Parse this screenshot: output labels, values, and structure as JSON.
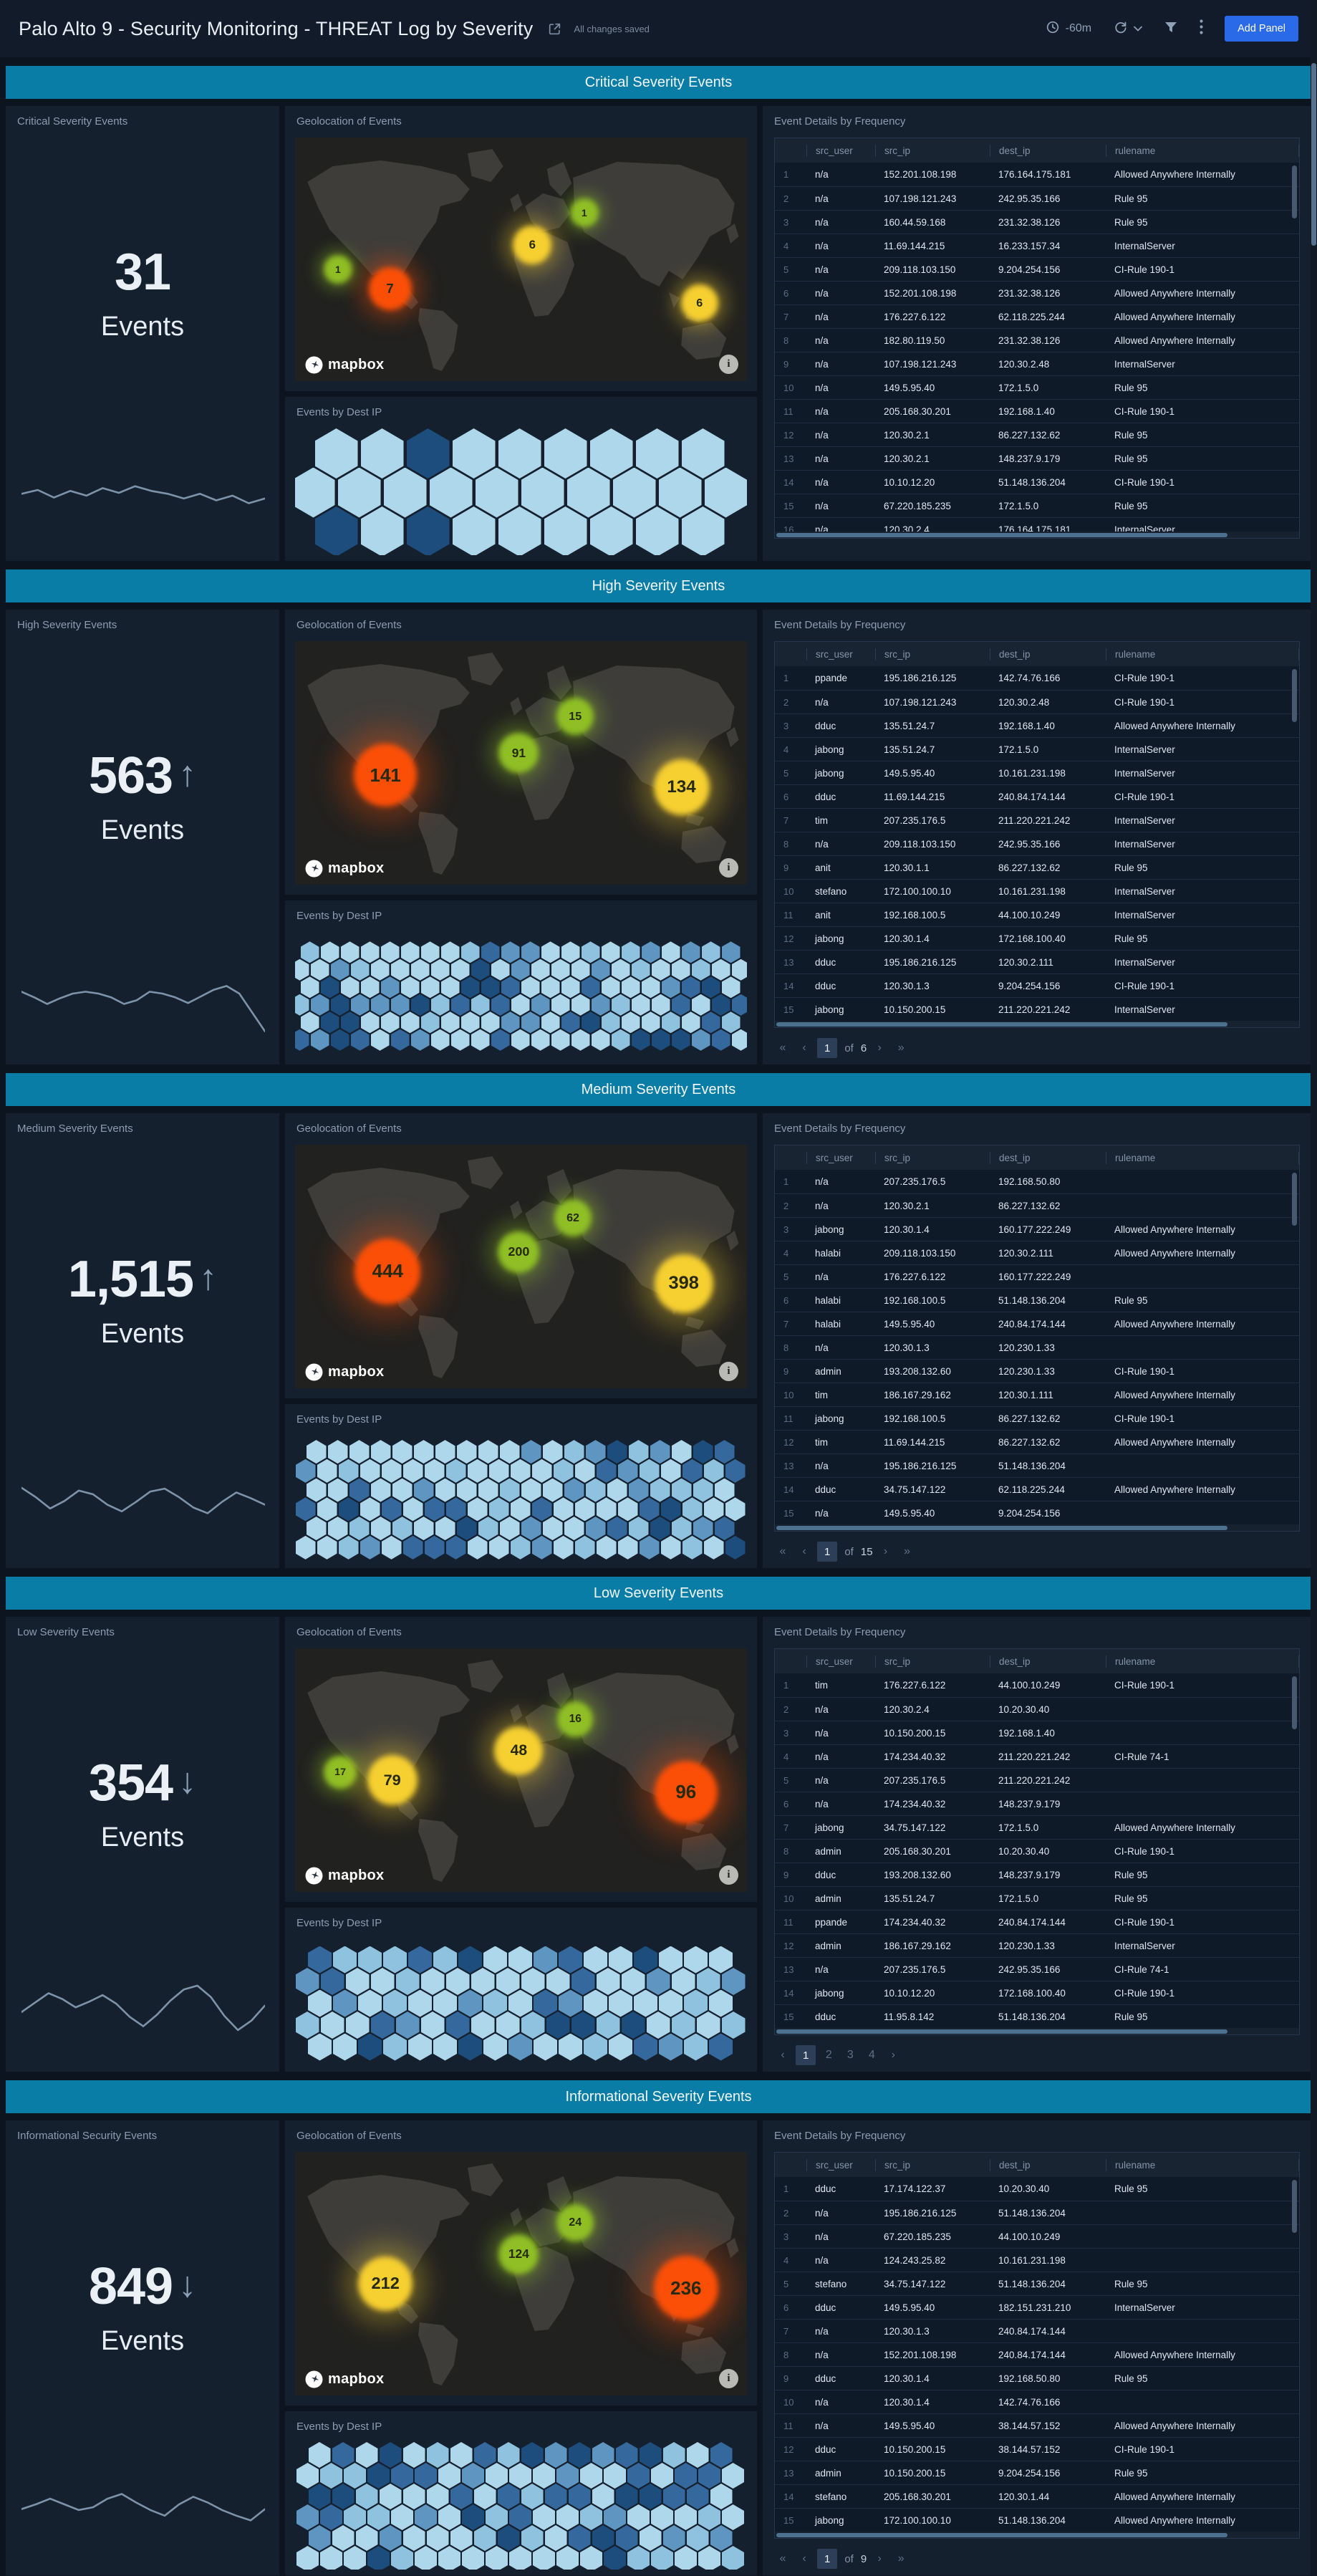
{
  "app": {
    "title": "Palo Alto 9 - Security Monitoring - THREAT Log by Severity",
    "autosave_status": "All changes saved",
    "time_range": "-60m",
    "add_panel_label": "Add Panel"
  },
  "glyphs": {
    "up": "↑",
    "down": "↓",
    "first": "«",
    "prev": "‹",
    "next": "›",
    "last": "»"
  },
  "panel_titles": {
    "geo": "Geolocation of Events",
    "hex": "Events by Dest IP",
    "table": "Event Details by Frequency"
  },
  "map": {
    "attribution": "mapbox",
    "info_glyph": "i"
  },
  "table_columns": [
    "src_user",
    "src_ip",
    "dest_ip",
    "rulename"
  ],
  "colors": {
    "section_bar": "#0a7da7",
    "bubble": {
      "green": "#8fbf25",
      "yellow": "#f6cf30",
      "orange": "#fb4f07"
    },
    "hex_palette": [
      "#aed7eb",
      "#8fc2de",
      "#5e95c1",
      "#35699d",
      "#1d4d7d"
    ],
    "sparkline": "#7d93aa"
  },
  "sections": [
    {
      "id": "critical",
      "bar_title": "Critical Severity Events",
      "stat": {
        "title": "Critical Severity Events",
        "value": "31",
        "trend": null,
        "unit": "Events"
      },
      "sparkline": [
        46,
        50,
        42,
        49,
        44,
        52,
        47,
        54,
        49,
        46,
        41,
        46,
        39,
        44,
        36,
        41
      ],
      "map_bubbles": [
        {
          "value": "1",
          "color": "green",
          "x": 9.5,
          "y": 54,
          "r": 20
        },
        {
          "value": "7",
          "color": "orange",
          "x": 21,
          "y": 62,
          "r": 30
        },
        {
          "value": "6",
          "color": "yellow",
          "x": 52.5,
          "y": 44,
          "r": 27
        },
        {
          "value": "1",
          "color": "green",
          "x": 64,
          "y": 31,
          "r": 20
        },
        {
          "value": "6",
          "color": "yellow",
          "x": 89.5,
          "y": 68,
          "r": 26
        }
      ],
      "hex": {
        "rows": 3,
        "cols": 9,
        "w": 60,
        "h": 70,
        "seed": 7,
        "weights": [
          0.86,
          0,
          0,
          0,
          0.14
        ]
      },
      "table_rows": [
        [
          "n/a",
          "152.201.108.198",
          "176.164.175.181",
          "Allowed Anywhere Internally"
        ],
        [
          "n/a",
          "107.198.121.243",
          "242.95.35.166",
          "Rule 95"
        ],
        [
          "n/a",
          "160.44.59.168",
          "231.32.38.126",
          "Rule 95"
        ],
        [
          "n/a",
          "11.69.144.215",
          "16.233.157.34",
          "InternalServer"
        ],
        [
          "n/a",
          "209.118.103.150",
          "9.204.254.156",
          "CI-Rule 190-1"
        ],
        [
          "n/a",
          "152.201.108.198",
          "231.32.38.126",
          "Allowed Anywhere Internally"
        ],
        [
          "n/a",
          "176.227.6.122",
          "62.118.225.244",
          "Allowed Anywhere Internally"
        ],
        [
          "n/a",
          "182.80.119.50",
          "231.32.38.126",
          "Allowed Anywhere Internally"
        ],
        [
          "n/a",
          "107.198.121.243",
          "120.30.2.48",
          "InternalServer"
        ],
        [
          "n/a",
          "149.5.95.40",
          "172.1.5.0",
          "Rule 95"
        ],
        [
          "n/a",
          "205.168.30.201",
          "192.168.1.40",
          "CI-Rule 190-1"
        ],
        [
          "n/a",
          "120.30.2.1",
          "86.227.132.62",
          "Rule 95"
        ],
        [
          "n/a",
          "120.30.2.1",
          "148.237.9.179",
          "Rule 95"
        ],
        [
          "n/a",
          "10.10.12.20",
          "51.148.136.204",
          "CI-Rule 190-1"
        ],
        [
          "n/a",
          "67.220.185.235",
          "172.1.5.0",
          "Rule 95"
        ],
        [
          "n/a",
          "120.30.2.4",
          "176.164.175.181",
          "InternalServer"
        ]
      ],
      "pagination": null
    },
    {
      "id": "high",
      "bar_title": "High Severity Events",
      "stat": {
        "title": "High Severity Events",
        "value": "563",
        "trend": "up",
        "unit": "Events"
      },
      "sparkline": [
        52,
        46,
        39,
        45,
        50,
        52,
        50,
        46,
        39,
        43,
        52,
        50,
        46,
        40,
        47,
        54,
        58,
        50,
        30,
        10
      ],
      "map_bubbles": [
        {
          "value": "141",
          "color": "orange",
          "x": 20,
          "y": 55,
          "r": 44
        },
        {
          "value": "91",
          "color": "green",
          "x": 49.5,
          "y": 46,
          "r": 28
        },
        {
          "value": "15",
          "color": "green",
          "x": 62,
          "y": 31,
          "r": 26
        },
        {
          "value": "134",
          "color": "yellow",
          "x": 85.5,
          "y": 60,
          "r": 39
        }
      ],
      "hex": {
        "rows": 6,
        "cols": 22,
        "w": 26,
        "h": 30,
        "seed": 13,
        "weights": [
          0.4,
          0.2,
          0.16,
          0.12,
          0.12
        ]
      },
      "table_rows": [
        [
          "ppande",
          "195.186.216.125",
          "142.74.76.166",
          "CI-Rule 190-1"
        ],
        [
          "n/a",
          "107.198.121.243",
          "120.30.2.48",
          "CI-Rule 190-1"
        ],
        [
          "dduc",
          "135.51.24.7",
          "192.168.1.40",
          "Allowed Anywhere Internally"
        ],
        [
          "jabong",
          "135.51.24.7",
          "172.1.5.0",
          "InternalServer"
        ],
        [
          "jabong",
          "149.5.95.40",
          "10.161.231.198",
          "InternalServer"
        ],
        [
          "dduc",
          "11.69.144.215",
          "240.84.174.144",
          "CI-Rule 190-1"
        ],
        [
          "tim",
          "207.235.176.5",
          "211.220.221.242",
          "InternalServer"
        ],
        [
          "n/a",
          "209.118.103.150",
          "242.95.35.166",
          "InternalServer"
        ],
        [
          "anit",
          "120.30.1.1",
          "86.227.132.62",
          "Rule 95"
        ],
        [
          "stefano",
          "172.100.100.10",
          "10.161.231.198",
          "InternalServer"
        ],
        [
          "anit",
          "192.168.100.5",
          "44.100.10.249",
          "InternalServer"
        ],
        [
          "jabong",
          "120.30.1.4",
          "172.168.100.40",
          "Rule 95"
        ],
        [
          "dduc",
          "195.186.216.125",
          "120.30.2.111",
          "InternalServer"
        ],
        [
          "dduc",
          "120.30.1.3",
          "9.204.254.156",
          "CI-Rule 190-1"
        ],
        [
          "jabong",
          "10.150.200.15",
          "211.220.221.242",
          "InternalServer"
        ]
      ],
      "pagination": {
        "kind": "range",
        "current": "1",
        "of": "of",
        "total": "6"
      }
    },
    {
      "id": "medium",
      "bar_title": "Medium Severity Events",
      "stat": {
        "title": "Medium Severity Events",
        "value": "1,515",
        "trend": "up",
        "unit": "Events"
      },
      "sparkline": [
        60,
        50,
        38,
        46,
        57,
        53,
        42,
        35,
        45,
        56,
        59,
        50,
        39,
        33,
        45,
        55,
        49,
        42
      ],
      "map_bubbles": [
        {
          "value": "444",
          "color": "orange",
          "x": 20.5,
          "y": 52,
          "r": 46
        },
        {
          "value": "200",
          "color": "green",
          "x": 49.5,
          "y": 44,
          "r": 29
        },
        {
          "value": "62",
          "color": "green",
          "x": 61.5,
          "y": 30,
          "r": 26
        },
        {
          "value": "398",
          "color": "yellow",
          "x": 86,
          "y": 57,
          "r": 41
        }
      ],
      "hex": {
        "rows": 6,
        "cols": 20,
        "w": 28,
        "h": 33,
        "seed": 29,
        "weights": [
          0.45,
          0.18,
          0.15,
          0.12,
          0.1
        ]
      },
      "table_rows": [
        [
          "n/a",
          "207.235.176.5",
          "192.168.50.80",
          ""
        ],
        [
          "n/a",
          "120.30.2.1",
          "86.227.132.62",
          ""
        ],
        [
          "jabong",
          "120.30.1.4",
          "160.177.222.249",
          "Allowed Anywhere Internally"
        ],
        [
          "halabi",
          "209.118.103.150",
          "120.30.2.111",
          "Allowed Anywhere Internally"
        ],
        [
          "n/a",
          "176.227.6.122",
          "160.177.222.249",
          ""
        ],
        [
          "halabi",
          "192.168.100.5",
          "51.148.136.204",
          "Rule 95"
        ],
        [
          "halabi",
          "149.5.95.40",
          "240.84.174.144",
          "Allowed Anywhere Internally"
        ],
        [
          "n/a",
          "120.30.1.3",
          "120.230.1.33",
          ""
        ],
        [
          "admin",
          "193.208.132.60",
          "120.230.1.33",
          "CI-Rule 190-1"
        ],
        [
          "tim",
          "186.167.29.162",
          "120.30.1.111",
          "Allowed Anywhere Internally"
        ],
        [
          "jabong",
          "192.168.100.5",
          "86.227.132.62",
          "CI-Rule 190-1"
        ],
        [
          "tim",
          "11.69.144.215",
          "86.227.132.62",
          "Allowed Anywhere Internally"
        ],
        [
          "n/a",
          "195.186.216.125",
          "51.148.136.204",
          ""
        ],
        [
          "dduc",
          "34.75.147.122",
          "62.118.225.244",
          "Allowed Anywhere Internally"
        ],
        [
          "n/a",
          "149.5.95.40",
          "9.204.254.156",
          ""
        ]
      ],
      "pagination": {
        "kind": "range",
        "current": "1",
        "of": "of",
        "total": "15"
      }
    },
    {
      "id": "low",
      "bar_title": "Low Severity Events",
      "stat": {
        "title": "Low Severity Events",
        "value": "354",
        "trend": "down",
        "unit": "Events"
      },
      "sparkline": [
        38,
        48,
        58,
        52,
        43,
        49,
        56,
        47,
        33,
        23,
        35,
        50,
        62,
        66,
        54,
        34,
        19,
        29,
        45
      ],
      "map_bubbles": [
        {
          "value": "17",
          "color": "green",
          "x": 10,
          "y": 51,
          "r": 23
        },
        {
          "value": "79",
          "color": "yellow",
          "x": 21.5,
          "y": 54,
          "r": 35
        },
        {
          "value": "48",
          "color": "yellow",
          "x": 49.5,
          "y": 42,
          "r": 34
        },
        {
          "value": "16",
          "color": "green",
          "x": 62,
          "y": 29,
          "r": 25
        },
        {
          "value": "96",
          "color": "orange",
          "x": 86.5,
          "y": 59,
          "r": 44
        }
      ],
      "hex": {
        "rows": 5,
        "cols": 17,
        "w": 33,
        "h": 38,
        "seed": 41,
        "weights": [
          0.48,
          0.18,
          0.14,
          0.1,
          0.1
        ]
      },
      "table_rows": [
        [
          "tim",
          "176.227.6.122",
          "44.100.10.249",
          "CI-Rule 190-1"
        ],
        [
          "n/a",
          "120.30.2.4",
          "10.20.30.40",
          ""
        ],
        [
          "n/a",
          "10.150.200.15",
          "192.168.1.40",
          ""
        ],
        [
          "n/a",
          "174.234.40.32",
          "211.220.221.242",
          "CI-Rule 74-1"
        ],
        [
          "n/a",
          "207.235.176.5",
          "211.220.221.242",
          ""
        ],
        [
          "n/a",
          "174.234.40.32",
          "148.237.9.179",
          ""
        ],
        [
          "jabong",
          "34.75.147.122",
          "172.1.5.0",
          "Allowed Anywhere Internally"
        ],
        [
          "admin",
          "205.168.30.201",
          "10.20.30.40",
          "CI-Rule 190-1"
        ],
        [
          "dduc",
          "193.208.132.60",
          "148.237.9.179",
          "Rule 95"
        ],
        [
          "admin",
          "135.51.24.7",
          "172.1.5.0",
          "Rule 95"
        ],
        [
          "ppande",
          "174.234.40.32",
          "240.84.174.144",
          "CI-Rule 190-1"
        ],
        [
          "admin",
          "186.167.29.162",
          "120.230.1.33",
          "InternalServer"
        ],
        [
          "n/a",
          "207.235.176.5",
          "242.95.35.166",
          "CI-Rule 74-1"
        ],
        [
          "jabong",
          "10.10.12.20",
          "172.168.100.40",
          "CI-Rule 190-1"
        ],
        [
          "dduc",
          "11.95.8.142",
          "51.148.136.204",
          "Rule 95"
        ]
      ],
      "pagination": {
        "kind": "pages",
        "current": "1",
        "pages": [
          "1",
          "2",
          "3",
          "4"
        ]
      }
    },
    {
      "id": "info",
      "bar_title": "Informational Severity Events",
      "stat": {
        "title": "Informational Security Events",
        "value": "849",
        "trend": "down",
        "unit": "Events"
      },
      "sparkline": [
        45,
        50,
        56,
        50,
        44,
        47,
        56,
        61,
        52,
        44,
        38,
        50,
        58,
        52,
        44,
        38,
        33,
        45
      ],
      "map_bubbles": [
        {
          "value": "212",
          "color": "yellow",
          "x": 20,
          "y": 54,
          "r": 38
        },
        {
          "value": "124",
          "color": "green",
          "x": 49.5,
          "y": 42,
          "r": 28
        },
        {
          "value": "24",
          "color": "green",
          "x": 62,
          "y": 29,
          "r": 26
        },
        {
          "value": "236",
          "color": "orange",
          "x": 86.5,
          "y": 56,
          "r": 45
        }
      ],
      "hex": {
        "rows": 6,
        "cols": 18,
        "w": 31,
        "h": 36,
        "seed": 53,
        "weights": [
          0.44,
          0.18,
          0.15,
          0.12,
          0.11
        ]
      },
      "table_rows": [
        [
          "dduc",
          "17.174.122.37",
          "10.20.30.40",
          "Rule 95"
        ],
        [
          "n/a",
          "195.186.216.125",
          "51.148.136.204",
          ""
        ],
        [
          "n/a",
          "67.220.185.235",
          "44.100.10.249",
          ""
        ],
        [
          "n/a",
          "124.243.25.82",
          "10.161.231.198",
          ""
        ],
        [
          "stefano",
          "34.75.147.122",
          "51.148.136.204",
          "Rule 95"
        ],
        [
          "dduc",
          "149.5.95.40",
          "182.151.231.210",
          "InternalServer"
        ],
        [
          "n/a",
          "120.30.1.3",
          "240.84.174.144",
          ""
        ],
        [
          "n/a",
          "152.201.108.198",
          "240.84.174.144",
          "Allowed Anywhere Internally"
        ],
        [
          "dduc",
          "120.30.1.4",
          "192.168.50.80",
          "Rule 95"
        ],
        [
          "n/a",
          "120.30.1.4",
          "142.74.76.166",
          ""
        ],
        [
          "n/a",
          "149.5.95.40",
          "38.144.57.152",
          "Allowed Anywhere Internally"
        ],
        [
          "dduc",
          "10.150.200.15",
          "38.144.57.152",
          "CI-Rule 190-1"
        ],
        [
          "admin",
          "10.150.200.15",
          "9.204.254.156",
          "Rule 95"
        ],
        [
          "stefano",
          "205.168.30.201",
          "120.30.1.44",
          "Allowed Anywhere Internally"
        ],
        [
          "jabong",
          "172.100.100.10",
          "51.148.136.204",
          "Allowed Anywhere Internally"
        ]
      ],
      "pagination": {
        "kind": "range",
        "current": "1",
        "of": "of",
        "total": "9"
      }
    }
  ]
}
